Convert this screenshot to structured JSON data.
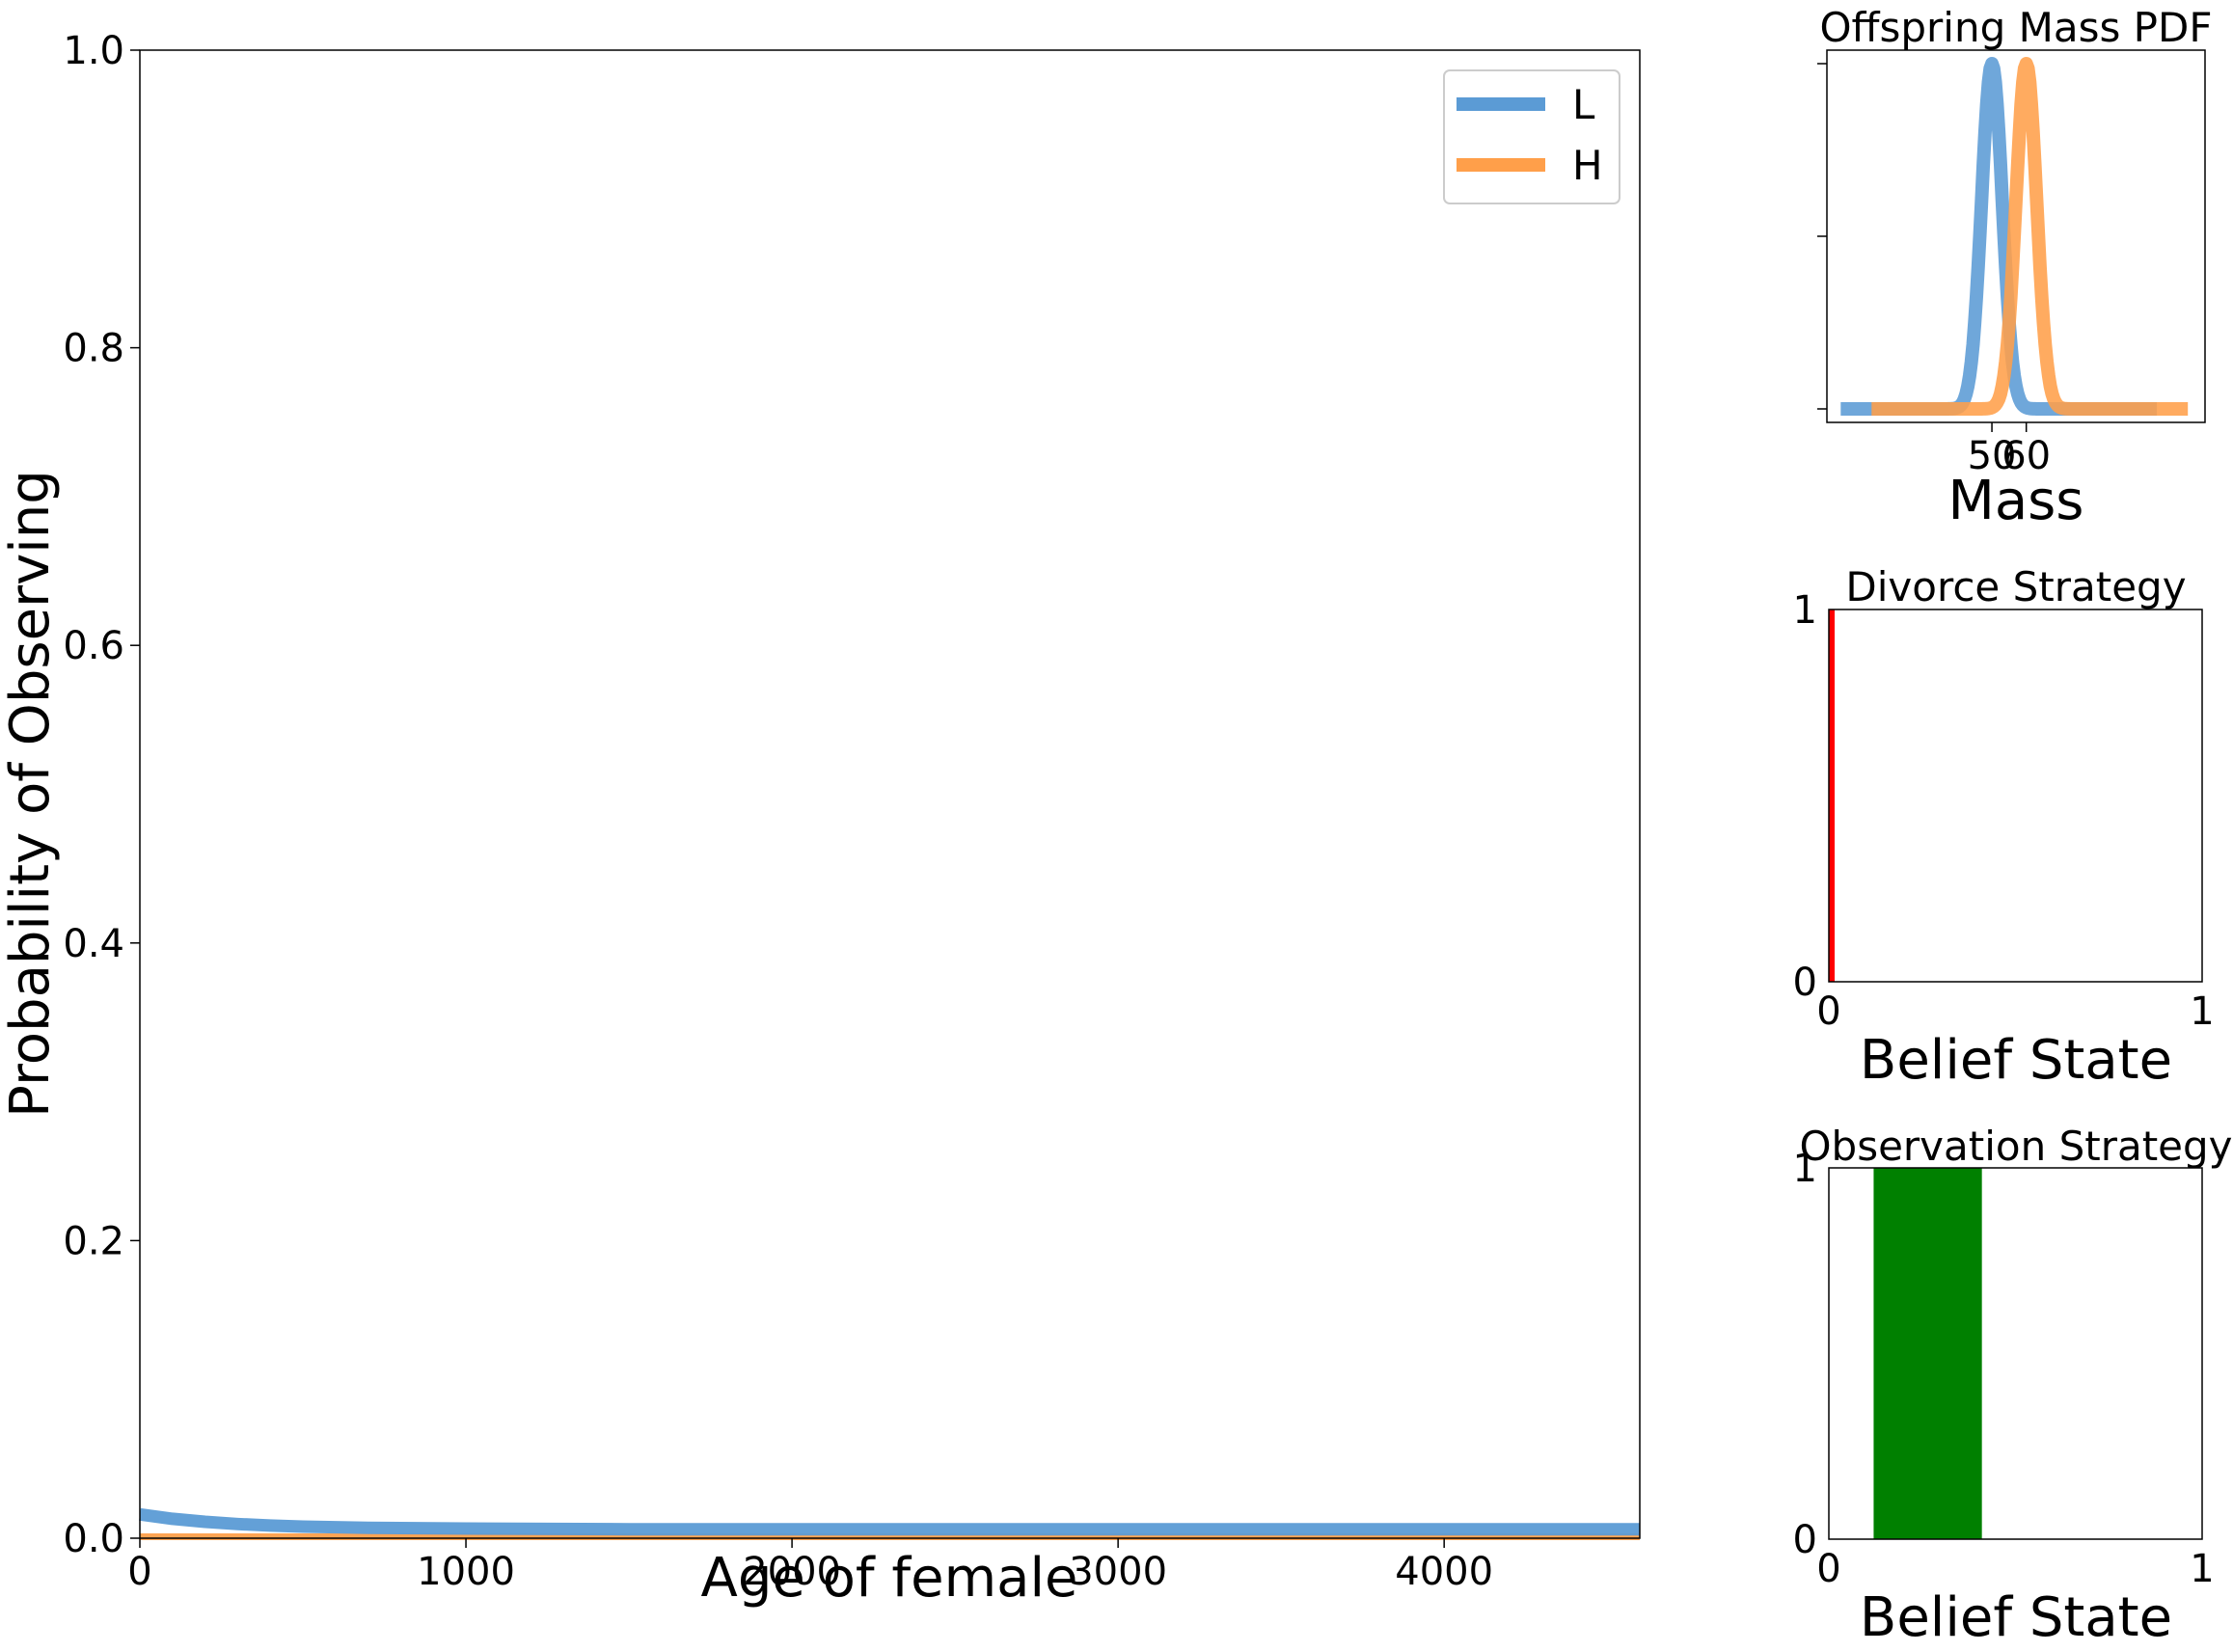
{
  "chart_data": [
    {
      "type": "line",
      "title": "",
      "xlabel": "Age of female",
      "ylabel": "Probability of Observing",
      "xlim": [
        0,
        4600
      ],
      "ylim": [
        0,
        1.0
      ],
      "xticks": [
        0,
        1000,
        2000,
        3000,
        4000
      ],
      "xtick_labels": [
        "0",
        "1000",
        "2000",
        "3000",
        "4000"
      ],
      "yticks": [
        0.0,
        0.2,
        0.4,
        0.6,
        0.8,
        1.0
      ],
      "ytick_labels": [
        "0.0",
        "0.2",
        "0.4",
        "0.6",
        "0.8",
        "1.0"
      ],
      "legend_position": "top-right",
      "grid": false,
      "series": [
        {
          "name": "L",
          "color": "#5b9bd5",
          "x": [
            0,
            100,
            200,
            300,
            400,
            500,
            700,
            1000,
            1500,
            2000,
            3000,
            4000,
            4600
          ],
          "y": [
            0.016,
            0.013,
            0.011,
            0.0095,
            0.0085,
            0.0078,
            0.007,
            0.0065,
            0.006,
            0.006,
            0.006,
            0.006,
            0.006
          ]
        },
        {
          "name": "H",
          "color": "#ff9f4a",
          "x": [
            0,
            1000,
            2000,
            3000,
            4000,
            4600
          ],
          "y": [
            0.001,
            0.001,
            0.001,
            0.001,
            0.001,
            0.001
          ]
        }
      ]
    },
    {
      "type": "line",
      "title": "Offspring Mass PDF",
      "xlabel": "Mass",
      "ylabel": "",
      "xticks": [
        50,
        60
      ],
      "xtick_labels": [
        "50",
        "60"
      ],
      "xlim": [
        2,
        112
      ],
      "series": [
        {
          "name": "L",
          "color": "#5b9bd5",
          "mean": 50,
          "sd": 3,
          "x_range": [
            6,
            98
          ]
        },
        {
          "name": "H",
          "color": "#ff9f4a",
          "mean": 60,
          "sd": 3,
          "x_range": [
            15,
            107
          ]
        }
      ]
    },
    {
      "type": "bar",
      "title": "Divorce Strategy",
      "xlabel": "Belief State",
      "xlim": [
        0,
        1
      ],
      "ylim": [
        0,
        1
      ],
      "xtick_labels": [
        "0",
        "1"
      ],
      "ytick_labels": [
        "0",
        "1"
      ],
      "color": "#ff0000",
      "region": [
        0.0,
        0.01
      ],
      "value": 1
    },
    {
      "type": "bar",
      "title": "Observation Strategy",
      "xlabel": "Belief State",
      "xlim": [
        0,
        1
      ],
      "ylim": [
        0,
        1
      ],
      "xtick_labels": [
        "0",
        "1"
      ],
      "ytick_labels": [
        "0",
        "1"
      ],
      "color": "#008000",
      "region": [
        0.12,
        0.41
      ],
      "value": 1
    }
  ]
}
